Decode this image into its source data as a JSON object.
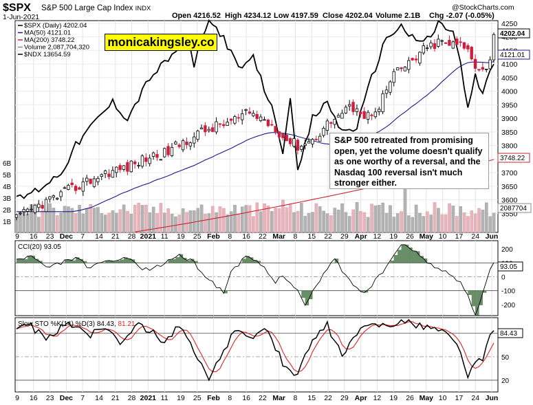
{
  "header": {
    "symbol": "$SPX",
    "description": "S&P 500 Large Cap Index",
    "exchange": "INDX",
    "date": "1-Jun-2021",
    "open": "Open 4216.52",
    "high": "High 4234.12",
    "low": "Low 4197.59",
    "close": "Close 4202.04",
    "volume": "Volume 2.1B",
    "change": "Chg -2.07 (-0.05%)",
    "brand": "@StockCharts.com"
  },
  "legend": [
    {
      "text": "$SPX (Daily) 4202.04",
      "color": "#000000"
    },
    {
      "text": "MA(50) 4121.01",
      "color": "#1a1a8c"
    },
    {
      "text": "MA(200) 3748.22",
      "color": "#cc2233"
    },
    {
      "text": "Volume 2,087,704,320",
      "color": "#888888"
    },
    {
      "text": "$NDX 13654.59",
      "color": "#000000"
    }
  ],
  "watermark": "monicakingsley.co",
  "annotation": "S&P 500 retreated from promising open, yet the volume doesn't qualify as one worthy of a reversal, and the Nasdaq 100 reversal isn't much stronger either.",
  "colors": {
    "up": "#000000",
    "down": "#cc1f3d",
    "ma50": "#1a1a8c",
    "ma200": "#cc2233",
    "vol_up": "#b3b3b3",
    "vol_down": "#e8b4bc",
    "cci_fill": "#4e7a4e",
    "cci_neg_fill": "#8c4a44",
    "sto_d": "#dd2222"
  },
  "chart_data": [
    {
      "type": "candlestick",
      "panel": "price",
      "series_name": "$SPX (Daily)",
      "x_labels": [
        "9",
        "16",
        "23",
        "Dec",
        "7",
        "14",
        "21",
        "28",
        "2021",
        "11",
        "19",
        "25",
        "Feb",
        "8",
        "16",
        "22",
        "Mar",
        "8",
        "15",
        "22",
        "29",
        "Apr",
        "12",
        "19",
        "26",
        "May",
        "10",
        "17",
        "24",
        "Jun"
      ],
      "ylim": [
        3480,
        4260
      ],
      "y_ticks": [
        3550,
        3600,
        3650,
        3700,
        3750,
        3800,
        3850,
        3900,
        3950,
        4000,
        4050,
        4100,
        4150,
        4200,
        4250
      ],
      "ma50_range": [
        3580,
        4121.01
      ],
      "ma200_range": [
        3430,
        3748.22
      ],
      "last_close": 4202.04,
      "volume_ticks": [
        "1B",
        "2B",
        "3B",
        "4B",
        "5B",
        "6B"
      ],
      "last_volume": "2087704"
    },
    {
      "type": "line",
      "panel": "cci",
      "series_name": "CCI(20)",
      "last": 93.05,
      "y_ticks": [
        200,
        100,
        0,
        -100,
        -200
      ],
      "ylim": [
        -280,
        260
      ],
      "reference_lines": [
        100,
        0,
        -100
      ]
    },
    {
      "type": "line",
      "panel": "stochastic",
      "series_name": "Slow STO %K(14) %D(3)",
      "k_last": 84.43,
      "d_last": 81.21,
      "y_ticks": [
        80,
        50,
        20
      ],
      "ylim": [
        5,
        100
      ],
      "reference_lines": [
        80,
        50,
        20
      ]
    }
  ],
  "axis_labels": {
    "cci_last_label": "93.05",
    "sto_last_label": "84.43",
    "ma50_label": "4121.01",
    "ma200_label": "3748.22",
    "price_label": "4202.04",
    "vol_label": "2087704"
  }
}
